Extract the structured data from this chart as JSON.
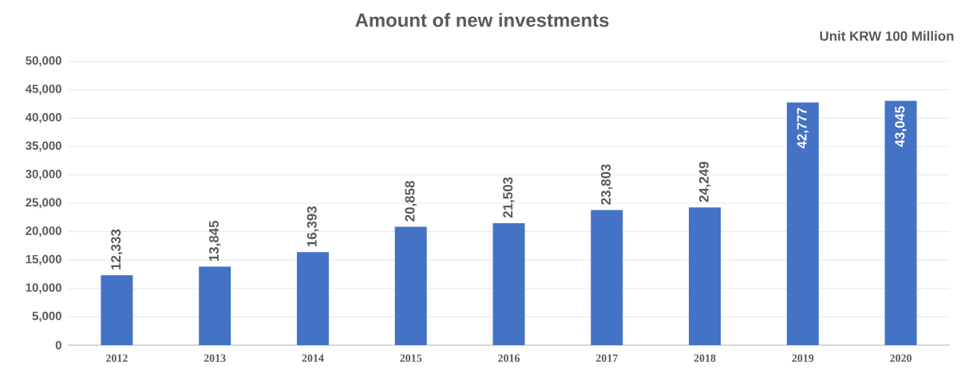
{
  "chart_data": {
    "type": "bar",
    "title": "Amount of new investments",
    "annotations": [
      "Unit KRW 100 Million"
    ],
    "categories": [
      "2012",
      "2013",
      "2014",
      "2015",
      "2016",
      "2017",
      "2018",
      "2019",
      "2020"
    ],
    "values": [
      12333,
      13845,
      16393,
      20858,
      21503,
      23803,
      24249,
      42777,
      43045
    ],
    "value_labels": [
      "12,333",
      "13,845",
      "16,393",
      "20,858",
      "21,503",
      "23,803",
      "24,249",
      "42,777",
      "43,045"
    ],
    "color": "#4472c4",
    "ylim": [
      0,
      50000
    ],
    "yticks": [
      0,
      {
        "value": 5000,
        "label": "5,000"
      },
      {
        "value": 10000,
        "label": "10,000"
      },
      {
        "value": 15000,
        "label": "15,000"
      },
      {
        "value": 20000,
        "label": "20,000"
      },
      {
        "value": 25000,
        "label": "25,000"
      },
      {
        "value": 30000,
        "label": "30,000"
      },
      {
        "value": 35000,
        "label": "35,000"
      },
      {
        "value": 40000,
        "label": "40,000"
      },
      {
        "value": 45000,
        "label": "45,000"
      },
      {
        "value": 50000,
        "label": "50,000"
      }
    ],
    "grid": "y"
  }
}
